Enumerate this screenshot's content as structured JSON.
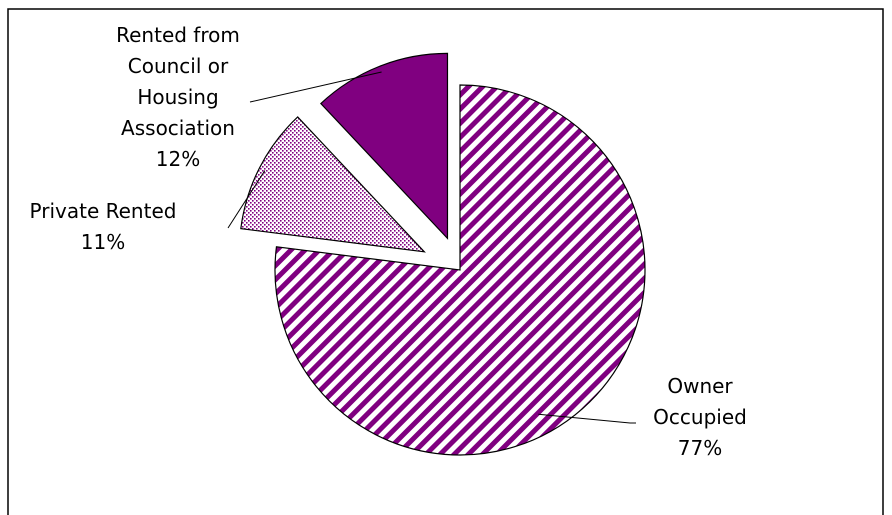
{
  "chart_data": {
    "type": "pie",
    "title": "",
    "start_angle_deg": -90,
    "direction": "clockwise",
    "exploded": true,
    "slices": [
      {
        "label_lines": [
          "Owner",
          "Occupied",
          "77%"
        ],
        "value": 77,
        "fill": "#800080",
        "pattern": "diagonal-stripes"
      },
      {
        "label_lines": [
          "Private Rented",
          "11%"
        ],
        "value": 11,
        "fill": "#800080",
        "pattern": "dots"
      },
      {
        "label_lines": [
          "Rented from",
          "Council or",
          "Housing",
          "Association",
          "12%"
        ],
        "value": 12,
        "fill": "#800080",
        "pattern": "solid"
      }
    ]
  }
}
